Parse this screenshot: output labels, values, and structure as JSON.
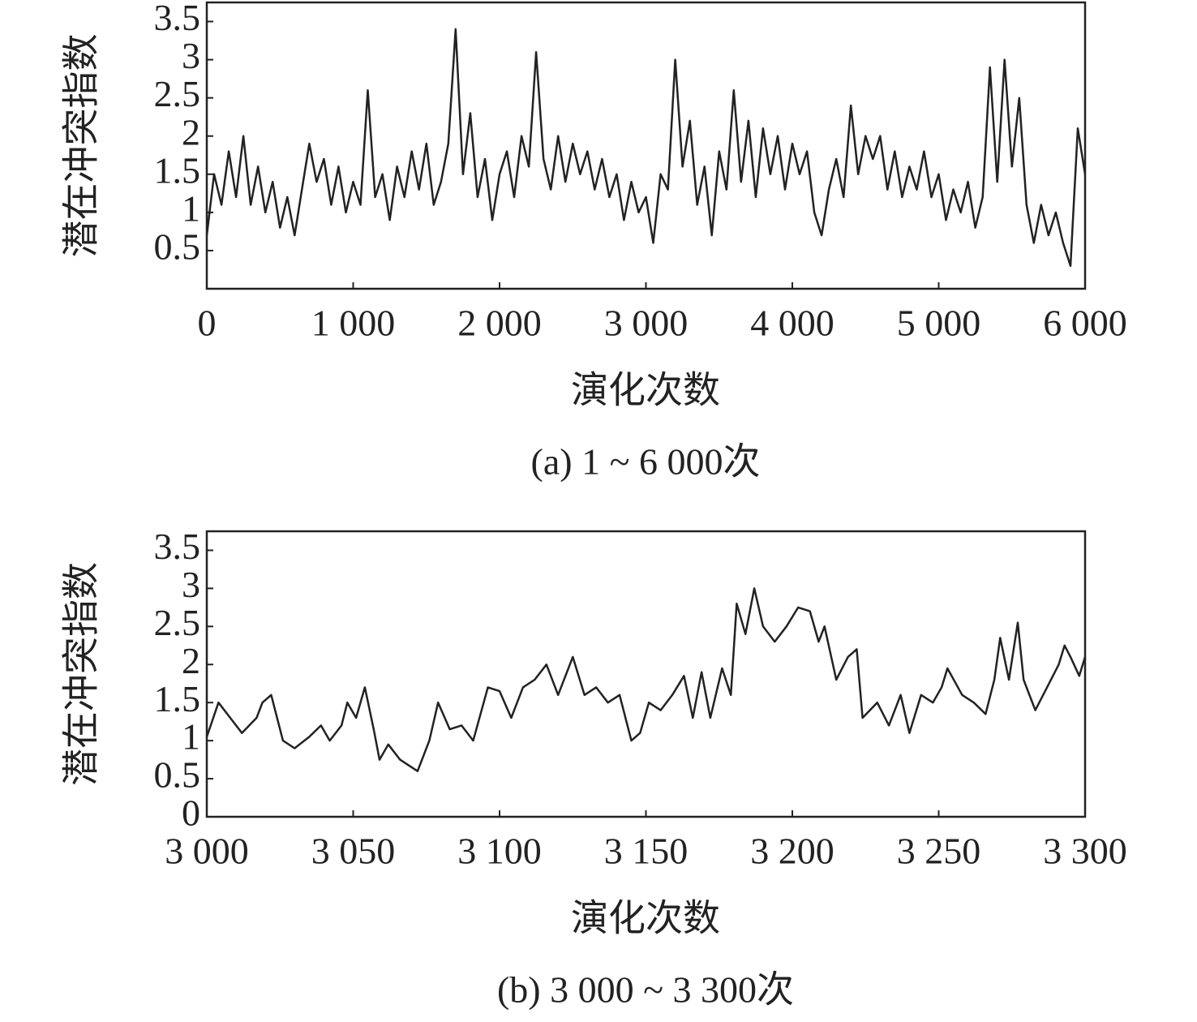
{
  "chart_data": [
    {
      "type": "line",
      "title": "(a) 1 ~ 6 000次",
      "x_label": "演化次数",
      "y_label": "潜在冲突指数",
      "color": "#222222",
      "xlim": [
        0,
        6000
      ],
      "ylim": [
        0,
        3.75
      ],
      "xticks": [
        0,
        {
          "value": 1000,
          "label": "1 000"
        },
        {
          "value": 2000,
          "label": "2 000"
        },
        {
          "value": 3000,
          "label": "3 000"
        },
        {
          "value": 4000,
          "label": "4 000"
        },
        {
          "value": 5000,
          "label": "5 000"
        },
        {
          "value": 6000,
          "label": "6 000"
        }
      ],
      "yticks": [
        0.5,
        1.0,
        1.5,
        2.0,
        2.5,
        3.0,
        3.5
      ],
      "x": [
        0,
        50,
        100,
        150,
        200,
        250,
        300,
        350,
        400,
        450,
        500,
        550,
        600,
        650,
        700,
        750,
        800,
        850,
        900,
        950,
        1000,
        1050,
        1100,
        1150,
        1200,
        1250,
        1300,
        1350,
        1400,
        1450,
        1500,
        1550,
        1600,
        1650,
        1700,
        1750,
        1800,
        1850,
        1900,
        1950,
        2000,
        2050,
        2100,
        2150,
        2200,
        2250,
        2300,
        2350,
        2400,
        2450,
        2500,
        2550,
        2600,
        2650,
        2700,
        2750,
        2800,
        2850,
        2900,
        2950,
        3000,
        3050,
        3100,
        3150,
        3200,
        3250,
        3300,
        3350,
        3400,
        3450,
        3500,
        3550,
        3600,
        3650,
        3700,
        3750,
        3800,
        3850,
        3900,
        3950,
        4000,
        4050,
        4100,
        4150,
        4200,
        4250,
        4300,
        4350,
        4400,
        4450,
        4500,
        4550,
        4600,
        4650,
        4700,
        4750,
        4800,
        4850,
        4900,
        4950,
        5000,
        5050,
        5100,
        5150,
        5200,
        5250,
        5300,
        5350,
        5400,
        5450,
        5500,
        5550,
        5600,
        5650,
        5700,
        5750,
        5800,
        5850,
        5900,
        5950,
        6000
      ],
      "values": [
        0.7,
        1.5,
        1.1,
        1.8,
        1.2,
        2.0,
        1.1,
        1.6,
        1.0,
        1.4,
        0.8,
        1.2,
        0.7,
        1.3,
        1.9,
        1.4,
        1.7,
        1.1,
        1.6,
        1.0,
        1.4,
        1.1,
        2.6,
        1.2,
        1.5,
        0.9,
        1.6,
        1.2,
        1.8,
        1.3,
        1.9,
        1.1,
        1.4,
        1.9,
        3.4,
        1.5,
        2.3,
        1.2,
        1.7,
        0.9,
        1.5,
        1.8,
        1.2,
        2.0,
        1.6,
        3.1,
        1.7,
        1.3,
        2.0,
        1.4,
        1.9,
        1.5,
        1.8,
        1.3,
        1.7,
        1.2,
        1.5,
        0.9,
        1.4,
        1.0,
        1.2,
        0.6,
        1.5,
        1.3,
        3.0,
        1.6,
        2.2,
        1.1,
        1.6,
        0.7,
        1.8,
        1.3,
        2.6,
        1.4,
        2.2,
        1.2,
        2.1,
        1.5,
        2.0,
        1.3,
        1.9,
        1.5,
        1.8,
        1.0,
        0.7,
        1.3,
        1.7,
        1.2,
        2.4,
        1.5,
        2.0,
        1.7,
        2.0,
        1.3,
        1.8,
        1.2,
        1.6,
        1.3,
        1.8,
        1.2,
        1.5,
        0.9,
        1.3,
        1.0,
        1.4,
        0.8,
        1.2,
        2.9,
        1.4,
        3.0,
        1.6,
        2.5,
        1.1,
        0.6,
        1.1,
        0.7,
        1.0,
        0.6,
        0.3,
        2.1,
        1.5
      ]
    },
    {
      "type": "line",
      "title": "(b) 3 000 ~ 3 300次",
      "x_label": "演化次数",
      "y_label": "潜在冲突指数",
      "color": "#222222",
      "xlim": [
        3000,
        3300
      ],
      "ylim": [
        0,
        3.75
      ],
      "xticks": [
        {
          "value": 3000,
          "label": "3 000"
        },
        {
          "value": 3050,
          "label": "3 050"
        },
        {
          "value": 3100,
          "label": "3 100"
        },
        {
          "value": 3150,
          "label": "3 150"
        },
        {
          "value": 3200,
          "label": "3 200"
        },
        {
          "value": 3250,
          "label": "3 250"
        },
        {
          "value": 3300,
          "label": "3 300"
        }
      ],
      "yticks": [
        0,
        0.5,
        1.0,
        1.5,
        2.0,
        2.5,
        3.0,
        3.5
      ],
      "x": [
        3000,
        3004,
        3008,
        3012,
        3017,
        3019,
        3022,
        3026,
        3030,
        3035,
        3039,
        3042,
        3046,
        3048,
        3051,
        3054,
        3057,
        3059,
        3062,
        3066,
        3072,
        3076,
        3079,
        3083,
        3087,
        3091,
        3096,
        3100,
        3104,
        3108,
        3112,
        3116,
        3120,
        3125,
        3129,
        3133,
        3137,
        3141,
        3145,
        3148,
        3151,
        3155,
        3159,
        3163,
        3166,
        3169,
        3172,
        3176,
        3179,
        3181,
        3184,
        3187,
        3190,
        3194,
        3198,
        3202,
        3206,
        3209,
        3211,
        3215,
        3219,
        3222,
        3224,
        3229,
        3233,
        3237,
        3240,
        3244,
        3248,
        3251,
        3253,
        3258,
        3262,
        3266,
        3269,
        3271,
        3274,
        3277,
        3279,
        3283,
        3287,
        3291,
        3293,
        3295,
        3298,
        3300
      ],
      "values": [
        1.05,
        1.5,
        1.3,
        1.1,
        1.3,
        1.5,
        1.6,
        1.0,
        0.9,
        1.05,
        1.2,
        1.0,
        1.2,
        1.5,
        1.3,
        1.7,
        1.15,
        0.75,
        0.95,
        0.75,
        0.6,
        1.0,
        1.5,
        1.15,
        1.2,
        1.0,
        1.7,
        1.65,
        1.3,
        1.7,
        1.8,
        2.0,
        1.6,
        2.1,
        1.6,
        1.7,
        1.5,
        1.6,
        1.0,
        1.1,
        1.5,
        1.4,
        1.6,
        1.85,
        1.3,
        1.9,
        1.3,
        1.95,
        1.6,
        2.8,
        2.4,
        3.0,
        2.5,
        2.3,
        2.5,
        2.75,
        2.7,
        2.3,
        2.5,
        1.8,
        2.1,
        2.2,
        1.3,
        1.5,
        1.2,
        1.6,
        1.1,
        1.6,
        1.5,
        1.7,
        1.95,
        1.6,
        1.5,
        1.35,
        1.8,
        2.35,
        1.8,
        2.55,
        1.8,
        1.4,
        1.7,
        2.0,
        2.25,
        2.1,
        1.85,
        2.1
      ]
    }
  ]
}
